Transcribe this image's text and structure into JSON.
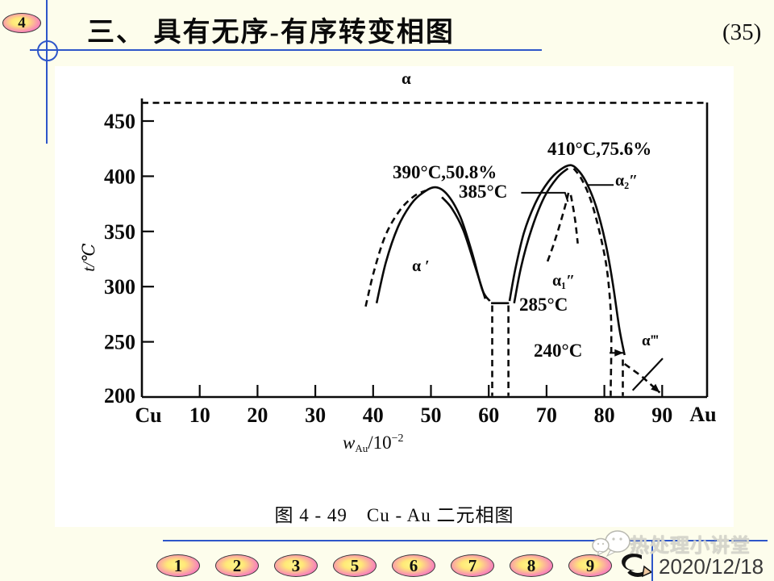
{
  "header": {
    "slide_badge": "4",
    "title": "三、 具有无序-有序转变相图",
    "page_number": "(35)"
  },
  "chart_data": {
    "type": "line",
    "caption": "图 4 - 49　Cu - Au 二元相图",
    "ylabel": "t/℃",
    "xlabel_parts": {
      "pre": "w",
      "sub": "Au",
      "post": "/10",
      "sup": "−2"
    },
    "x_axis": {
      "left_label": "Cu",
      "right_label": "Au",
      "ticks": [
        10,
        20,
        30,
        40,
        50,
        60,
        70,
        80,
        90
      ]
    },
    "y_axis": {
      "origin_label": 200,
      "ticks": [
        250,
        300,
        350,
        400,
        450
      ]
    },
    "annotations": {
      "alpha": "α",
      "peak1": "390°C,50.8%",
      "peak2": "410°C,75.6%",
      "t385": "385°C",
      "t285": "285°C",
      "t240": "240°C",
      "alpha_prime": "α ′",
      "alpha1": "α₁″",
      "alpha2": "α₂″",
      "alpha3": "α‴"
    },
    "key_points": [
      {
        "temperature_c": 390,
        "w_au_pct": 50.8
      },
      {
        "temperature_c": 410,
        "w_au_pct": 75.6
      },
      {
        "temperature_c": 385
      },
      {
        "temperature_c": 285
      },
      {
        "temperature_c": 240
      }
    ],
    "series": [
      {
        "name": "alpha-boundary-dashed",
        "style": "dashed",
        "smooth": false,
        "points": [
          [
            0,
            466.5
          ],
          [
            97.7,
            466.5
          ]
        ]
      },
      {
        "name": "dome1-solid",
        "style": "solid",
        "smooth": true,
        "points": [
          [
            40.6,
            285
          ],
          [
            42.2,
            322
          ],
          [
            44.3,
            354
          ],
          [
            46.6,
            375
          ],
          [
            48.6,
            385
          ],
          [
            50.8,
            390
          ],
          [
            52.9,
            383
          ],
          [
            55.1,
            363
          ],
          [
            57.1,
            331
          ],
          [
            58.9,
            297
          ],
          [
            60.2,
            287
          ]
        ]
      },
      {
        "name": "dome1-right-inner",
        "style": "solid",
        "smooth": true,
        "points": [
          [
            51.9,
            381
          ],
          [
            53.6,
            371
          ],
          [
            55.6,
            351
          ],
          [
            57.6,
            319
          ],
          [
            59.4,
            289
          ]
        ]
      },
      {
        "name": "dome1-dashed-left",
        "style": "dashed",
        "smooth": true,
        "points": [
          [
            38.7,
            282
          ],
          [
            40.1,
            313
          ],
          [
            42.1,
            346
          ],
          [
            44.6,
            369
          ],
          [
            47.1,
            382
          ],
          [
            49.1,
            387
          ]
        ]
      },
      {
        "name": "tie-line-285",
        "style": "solid",
        "smooth": false,
        "points": [
          [
            60.4,
            285
          ],
          [
            63.5,
            285
          ]
        ]
      },
      {
        "name": "vertical-dashed-left",
        "style": "dashed",
        "smooth": false,
        "points": [
          [
            60.6,
            283
          ],
          [
            60.6,
            201
          ]
        ]
      },
      {
        "name": "vertical-dashed-right",
        "style": "dashed",
        "smooth": false,
        "points": [
          [
            63.4,
            283
          ],
          [
            63.4,
            201
          ]
        ]
      },
      {
        "name": "dome2-solid",
        "style": "solid",
        "smooth": true,
        "points": [
          [
            63.6,
            287
          ],
          [
            64.6,
            316
          ],
          [
            66.1,
            349
          ],
          [
            68.1,
            376
          ],
          [
            70.3,
            395
          ],
          [
            72.4,
            406
          ],
          [
            74.2,
            410
          ],
          [
            75.7,
            404
          ],
          [
            77.1,
            392
          ],
          [
            78.6,
            372
          ],
          [
            80.1,
            342
          ],
          [
            81.4,
            305
          ],
          [
            82.6,
            262
          ],
          [
            83.5,
            238
          ]
        ]
      },
      {
        "name": "dome2-left-inner",
        "style": "solid",
        "smooth": true,
        "points": [
          [
            64.4,
            285
          ],
          [
            65.6,
            318
          ],
          [
            67.4,
            352
          ],
          [
            69.6,
            381
          ],
          [
            71.9,
            399
          ],
          [
            73.7,
            407
          ]
        ]
      },
      {
        "name": "dome2-dashed-right",
        "style": "dashed",
        "smooth": true,
        "points": [
          [
            74.7,
            407
          ],
          [
            76.1,
            397
          ],
          [
            77.6,
            379
          ],
          [
            79.1,
            351
          ],
          [
            80.4,
            317
          ],
          [
            81.1,
            278
          ],
          [
            81.2,
            246
          ],
          [
            81.1,
            208
          ],
          [
            81.1,
            201
          ]
        ]
      },
      {
        "name": "alpha1-dashed-left",
        "style": "dashed",
        "smooth": true,
        "points": [
          [
            73.8,
            385
          ],
          [
            72.9,
            367
          ],
          [
            71.4,
            341
          ],
          [
            69.9,
            319
          ]
        ]
      },
      {
        "name": "alpha1-dashed-right",
        "style": "dashed",
        "smooth": true,
        "points": [
          [
            74.2,
            383
          ],
          [
            74.9,
            362
          ],
          [
            75.4,
            339
          ]
        ]
      },
      {
        "name": "vertical-dashed-83",
        "style": "dashed",
        "smooth": false,
        "points": [
          [
            83.2,
            234
          ],
          [
            83.2,
            201
          ]
        ]
      },
      {
        "name": "leader-385",
        "style": "solid",
        "smooth": false,
        "width": 2,
        "points": [
          [
            65.6,
            385
          ],
          [
            73.2,
            385
          ],
          [
            73.7,
            377
          ]
        ]
      },
      {
        "name": "leader-alpha2",
        "style": "solid",
        "smooth": false,
        "width": 2,
        "points": [
          [
            77.2,
            392
          ],
          [
            81.6,
            392
          ]
        ]
      },
      {
        "name": "pointer-240",
        "style": "solid",
        "smooth": false,
        "width": 2.2,
        "arrow_end": true,
        "points": [
          [
            80.9,
            240
          ],
          [
            83.3,
            240
          ]
        ]
      },
      {
        "name": "alpha3-solid-tick",
        "style": "solid",
        "smooth": false,
        "width": 2.2,
        "points": [
          [
            90.1,
            235
          ],
          [
            84.9,
            206
          ]
        ]
      },
      {
        "name": "alpha3-dashed-arrow",
        "style": "dashed",
        "smooth": false,
        "arrow_end": true,
        "points": [
          [
            83.5,
            230
          ],
          [
            86.4,
            219
          ],
          [
            89.6,
            204
          ]
        ]
      }
    ]
  },
  "footer": {
    "nav_buttons": [
      "1",
      "2",
      "3",
      "5",
      "6",
      "7",
      "8",
      "9"
    ],
    "watermark": "热处理小讲堂",
    "date": "2020/12/18"
  },
  "colors": {
    "accent_blue": "#2E56C9",
    "background": "#FDFDEC",
    "ink": "#0a0a0a"
  }
}
